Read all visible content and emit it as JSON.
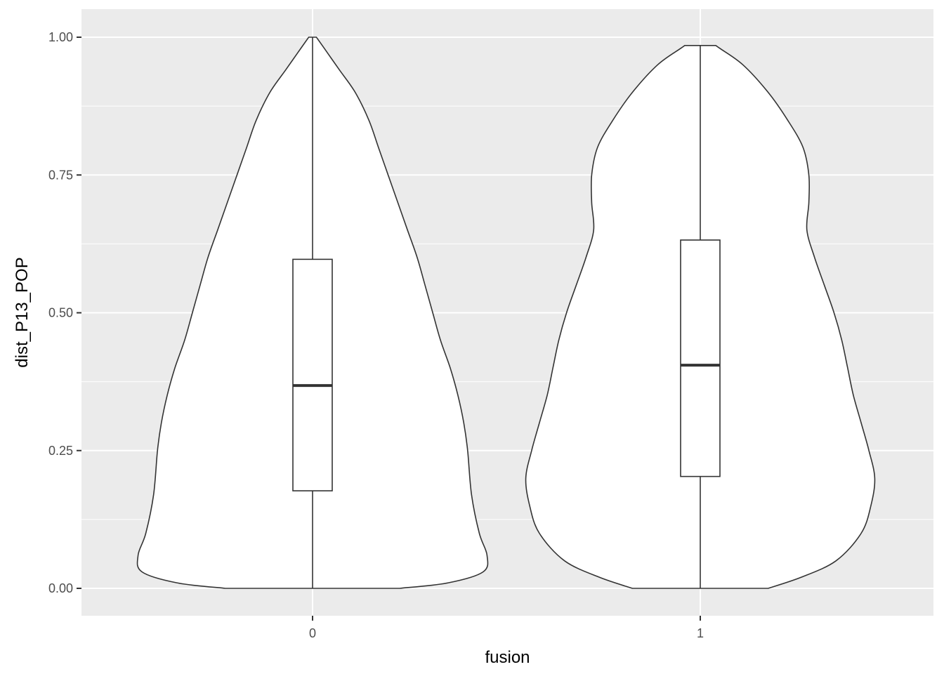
{
  "chart_data": {
    "type": "violin",
    "title": "",
    "xlabel": "fusion",
    "ylabel": "dist_P13_POP",
    "categories": [
      "0",
      "1"
    ],
    "ylim": [
      -0.05,
      1.05
    ],
    "yticks": [
      0.0,
      0.25,
      0.5,
      0.75,
      1.0
    ],
    "ytick_labels": [
      "0.00",
      "0.25",
      "0.50",
      "0.75",
      "1.00"
    ],
    "grid": true,
    "legend": "none",
    "colors": {
      "panel_bg": "#ebebeb",
      "grid": "#ffffff",
      "violin_fill": "#ffffff",
      "stroke": "#333333",
      "tick_text": "#4d4d4d",
      "tick_mark": "#333333"
    },
    "groups": [
      {
        "category": "0",
        "box": {
          "min": 0.0,
          "q1": 0.177,
          "median": 0.368,
          "q3": 0.597,
          "max": 1.0
        },
        "violin": {
          "y": [
            0.0,
            0.01,
            0.03,
            0.06,
            0.1,
            0.17,
            0.25,
            0.3,
            0.35,
            0.4,
            0.45,
            0.5,
            0.55,
            0.6,
            0.65,
            0.7,
            0.75,
            0.8,
            0.85,
            0.9,
            0.94,
            0.97,
            1.0
          ],
          "width": [
            0.45,
            0.7,
            0.88,
            0.9,
            0.86,
            0.82,
            0.8,
            0.78,
            0.75,
            0.71,
            0.66,
            0.62,
            0.58,
            0.54,
            0.49,
            0.44,
            0.39,
            0.34,
            0.29,
            0.22,
            0.14,
            0.08,
            0.02
          ]
        }
      },
      {
        "category": "1",
        "box": {
          "min": 0.0,
          "q1": 0.203,
          "median": 0.405,
          "q3": 0.632,
          "max": 0.985
        },
        "violin": {
          "y": [
            0.0,
            0.02,
            0.05,
            0.1,
            0.15,
            0.2,
            0.25,
            0.3,
            0.35,
            0.4,
            0.45,
            0.5,
            0.55,
            0.6,
            0.65,
            0.7,
            0.75,
            0.8,
            0.85,
            0.9,
            0.95,
            0.98,
            0.985
          ],
          "width": [
            0.35,
            0.52,
            0.7,
            0.83,
            0.88,
            0.9,
            0.87,
            0.83,
            0.79,
            0.76,
            0.73,
            0.69,
            0.64,
            0.59,
            0.55,
            0.56,
            0.56,
            0.53,
            0.45,
            0.35,
            0.22,
            0.1,
            0.08
          ]
        }
      }
    ]
  }
}
